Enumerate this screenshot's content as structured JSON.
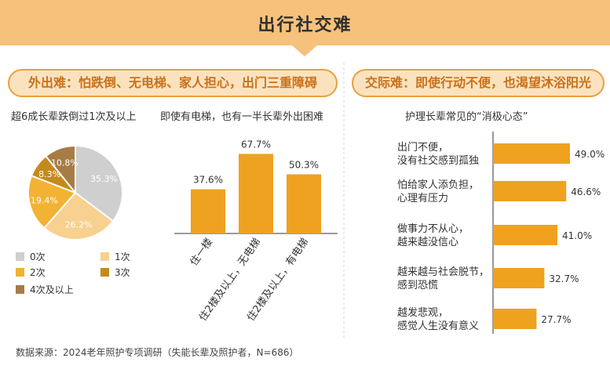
{
  "header": {
    "title": "出行社交难"
  },
  "left_section": {
    "label": "外出难：怕跌倒、无电梯、家人担心，出门三重障碍",
    "pie_subtitle": "超6成长辈跌倒过1次及以上",
    "bar_subtitle": "即使有电梯，也有一半长辈外出困难"
  },
  "right_section": {
    "label": "交际难：即使行动不便，也渴望沐浴阳光",
    "subtitle": "护理长辈常见的“消极心态”"
  },
  "source": "数据来源：2024老年照护专项调研（失能长辈及照护者，N=686）",
  "chart_data": [
    {
      "type": "pie",
      "categories": [
        "0次",
        "1次",
        "2次",
        "3次",
        "4次及以上"
      ],
      "values": [
        35.3,
        26.2,
        19.4,
        8.3,
        10.8
      ],
      "value_labels": [
        "35.3%",
        "26.2%",
        "19.4%",
        "8.3%",
        "10.8%"
      ],
      "colors": [
        "#cfcfcf",
        "#f8d08f",
        "#f2b233",
        "#c48a1c",
        "#a77c44"
      ],
      "legend_placement": "bottom"
    },
    {
      "type": "bar",
      "categories": [
        "住一楼",
        "住2楼及以上，无电梯",
        "住2楼及以上，有电梯"
      ],
      "values": [
        37.6,
        67.7,
        50.3
      ],
      "value_labels": [
        "37.6%",
        "67.7%",
        "50.3%"
      ],
      "ylim": [
        0,
        100
      ],
      "color": "#eea21f"
    },
    {
      "type": "bar",
      "orientation": "horizontal",
      "categories": [
        [
          "出门不便，",
          "没有社交感到孤独"
        ],
        [
          "怕给家人添负担，",
          "心理有压力"
        ],
        [
          "做事力不从心，",
          "越来越没信心"
        ],
        [
          "越来越与社会脱节，",
          "感到恐慌"
        ],
        [
          "越发悲观，",
          "感觉人生没有意义"
        ]
      ],
      "values": [
        49.0,
        46.6,
        41.0,
        32.7,
        27.7
      ],
      "value_labels": [
        "49.0%",
        "46.6%",
        "41.0%",
        "32.7%",
        "27.7%"
      ],
      "xlim": [
        0,
        60
      ],
      "color": "#eea21f"
    }
  ]
}
